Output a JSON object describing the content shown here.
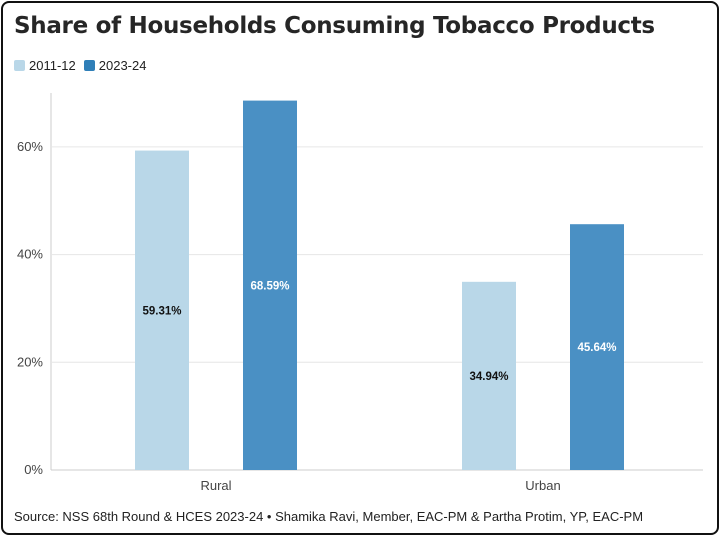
{
  "title": "Share of Households Consuming Tobacco Products",
  "source": "Source: NSS 68th Round & HCES 2023-24 • Shamika Ravi, Member, EAC-PM & Partha Protim, YP, EAC-PM",
  "colors": {
    "s1": "#b9d7e8",
    "s2": "#4a90c4",
    "grid": "#e6e6e6",
    "axis": "#cccccc",
    "text": "#444444"
  },
  "chart_data": {
    "type": "bar",
    "categories": [
      "Rural",
      "Urban"
    ],
    "series": [
      {
        "name": "2011-12",
        "values": [
          59.31,
          34.94
        ],
        "labels": [
          "59.31%",
          "34.94%"
        ]
      },
      {
        "name": "2023-24",
        "values": [
          68.59,
          45.64
        ],
        "labels": [
          "68.59%",
          "45.64%"
        ]
      }
    ],
    "yticks": [
      "0%",
      "20%",
      "40%",
      "60%"
    ],
    "ylim": [
      0,
      70
    ],
    "legend": "top-left"
  }
}
